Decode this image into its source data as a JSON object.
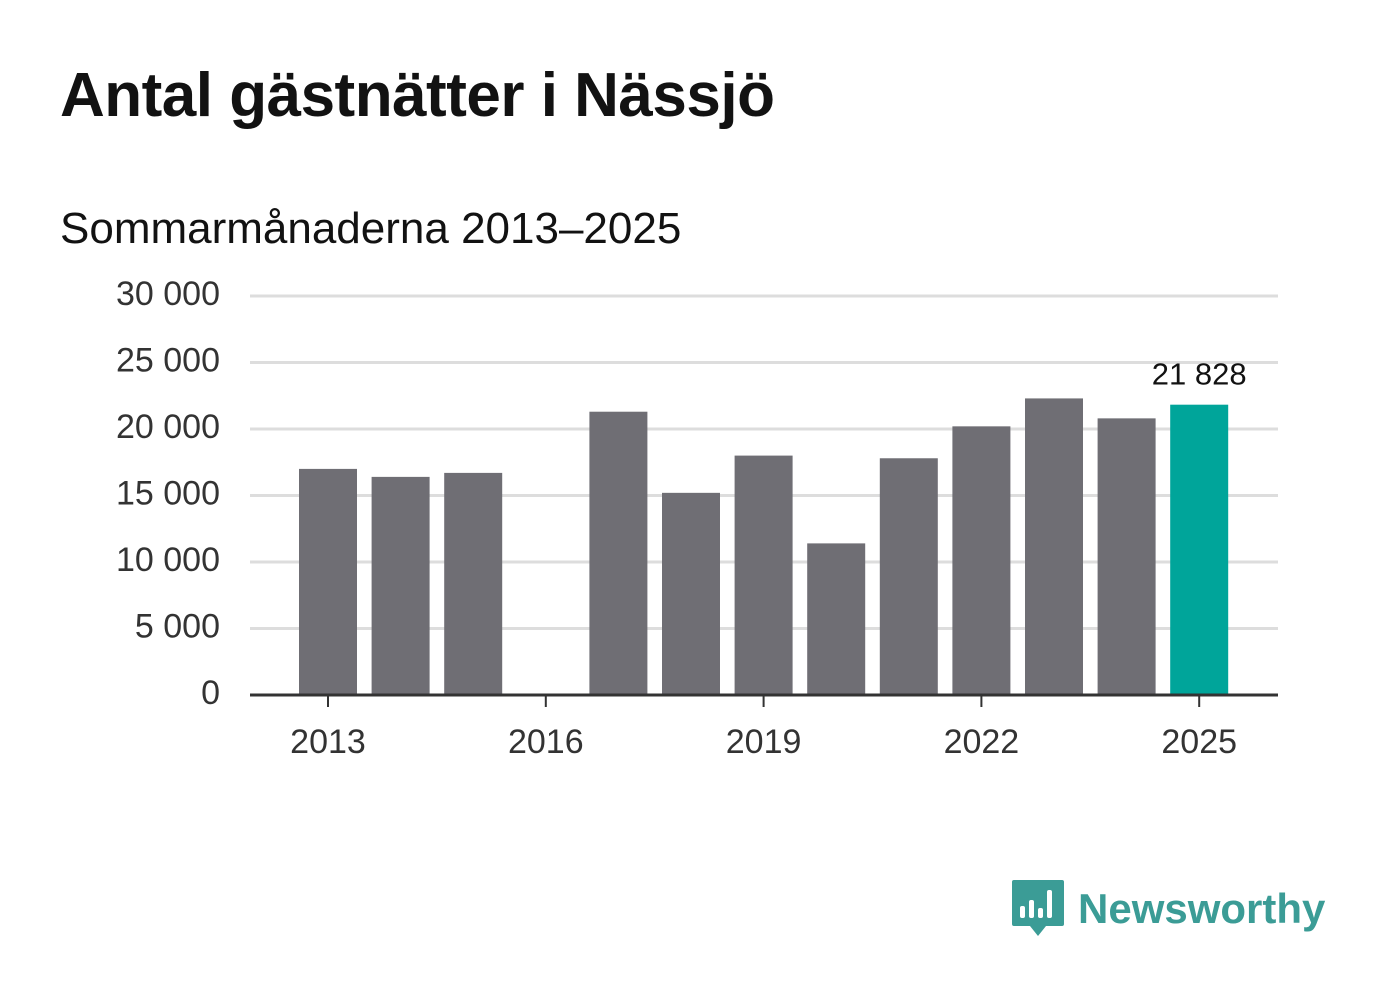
{
  "header": {
    "title": "Antal gästnätter i Nässjö",
    "subtitle": "Sommarmånaderna 2013–2025"
  },
  "chart_data": {
    "type": "bar",
    "x": [
      2013,
      2014,
      2015,
      2016,
      2017,
      2018,
      2019,
      2020,
      2021,
      2022,
      2023,
      2024,
      2025
    ],
    "values": [
      17000,
      16400,
      16700,
      null,
      21300,
      15200,
      18000,
      11400,
      17800,
      20200,
      22300,
      20800,
      21828
    ],
    "highlight_index": 12,
    "highlight_label": "21 828",
    "x_tick_labels": [
      "2013",
      "2016",
      "2019",
      "2022",
      "2025"
    ],
    "y_tick_labels": [
      "0",
      "5 000",
      "10 000",
      "15 000",
      "20 000",
      "25 000",
      "30 000"
    ],
    "ylim": [
      0,
      30000
    ],
    "grid": true,
    "colors": {
      "bar": "#6f6e74",
      "highlight": "#00a59a",
      "grid": "#dddddd",
      "axis": "#333333"
    }
  },
  "branding": {
    "logo_text": "Newsworthy",
    "logo_icon": "bar-chart-speech-bubble-icon",
    "logo_color": "#3b9c96"
  }
}
